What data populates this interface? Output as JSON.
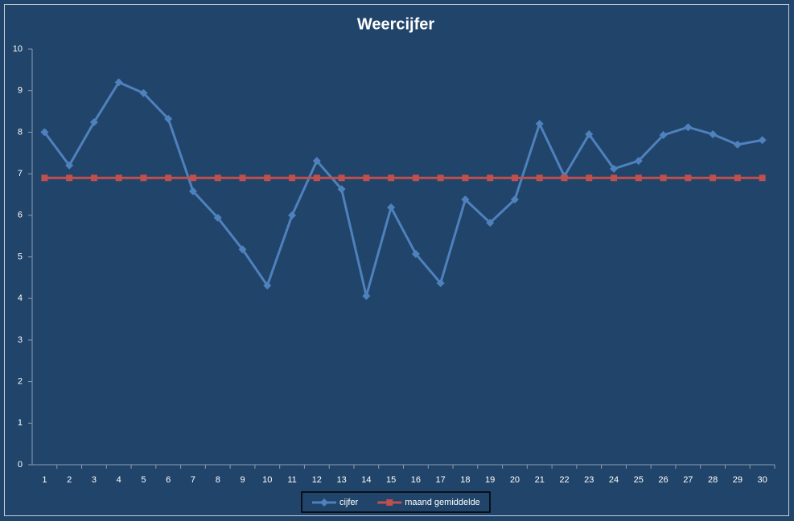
{
  "chart_data": {
    "type": "line",
    "title": "Weercijfer",
    "categories": [
      "1",
      "2",
      "3",
      "4",
      "5",
      "6",
      "7",
      "8",
      "9",
      "10",
      "11",
      "12",
      "13",
      "14",
      "15",
      "16",
      "17",
      "18",
      "19",
      "20",
      "21",
      "22",
      "23",
      "24",
      "25",
      "26",
      "27",
      "28",
      "29",
      "30"
    ],
    "series": [
      {
        "name": "cijfer",
        "color": "#4f81bd",
        "marker": "diamond",
        "values": [
          8.0,
          7.2,
          8.24,
          9.2,
          8.94,
          8.32,
          6.58,
          5.94,
          5.18,
          4.31,
          6.0,
          7.31,
          6.63,
          4.06,
          6.19,
          5.07,
          4.37,
          6.38,
          5.82,
          6.38,
          8.2,
          6.94,
          7.95,
          7.12,
          7.31,
          7.93,
          8.12,
          7.95,
          7.7,
          7.81
        ]
      },
      {
        "name": "maand gemiddelde",
        "color": "#c0504d",
        "marker": "square",
        "values": [
          6.9,
          6.9,
          6.9,
          6.9,
          6.9,
          6.9,
          6.9,
          6.9,
          6.9,
          6.9,
          6.9,
          6.9,
          6.9,
          6.9,
          6.9,
          6.9,
          6.9,
          6.9,
          6.9,
          6.9,
          6.9,
          6.9,
          6.9,
          6.9,
          6.9,
          6.9,
          6.9,
          6.9,
          6.9,
          6.9
        ]
      }
    ],
    "ylim": [
      0,
      10
    ],
    "yticks": [
      0,
      1,
      2,
      3,
      4,
      5,
      6,
      7,
      8,
      9,
      10
    ],
    "grid": false,
    "legend": "bottom"
  }
}
